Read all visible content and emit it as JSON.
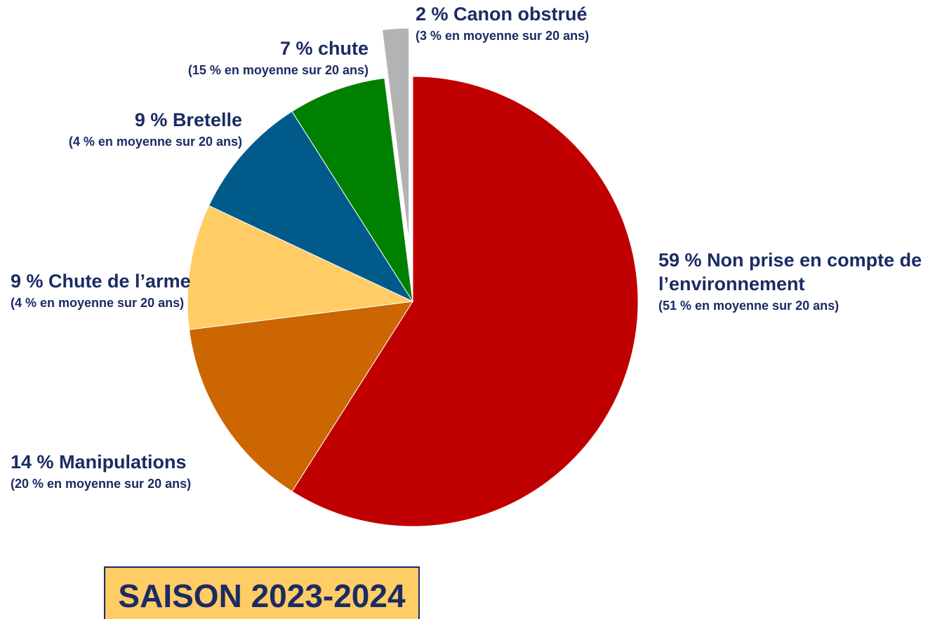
{
  "chart_data": {
    "type": "pie",
    "title": "SAISON 2023-2024",
    "categories": [
      "Non prise en compte de l’environnement",
      "Manipulations",
      "Chute de l’arme",
      "Bretelle",
      "chute",
      "Canon obstrué"
    ],
    "values": [
      59,
      14,
      9,
      9,
      7,
      2
    ],
    "value_labels": [
      "59 %",
      "14 %",
      "9 %",
      "9 %",
      "7 %",
      "2 %"
    ],
    "average_labels": [
      "(51 % en moyenne sur 20 ans)",
      "(20 % en moyenne sur 20 ans)",
      "(4 % en moyenne sur 20 ans)",
      "(4 % en moyenne sur 20 ans)",
      "(15 % en moyenne sur 20 ans)",
      "(3 % en moyenne sur 20 ans)"
    ],
    "colors": [
      "#c00000",
      "#cc6600",
      "#ffcc66",
      "#005b8a",
      "#008000",
      "#b3b3b3"
    ],
    "exploded": [
      false,
      false,
      false,
      false,
      false,
      true
    ]
  }
}
